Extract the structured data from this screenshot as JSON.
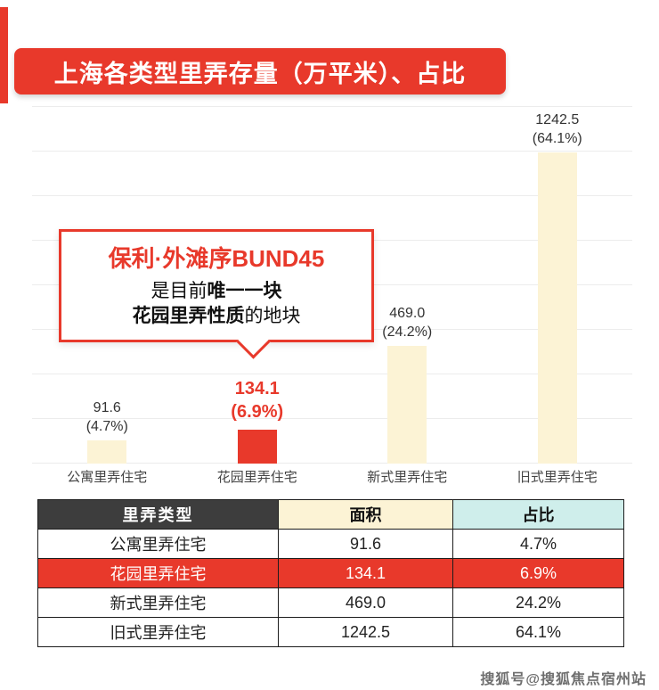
{
  "colors": {
    "accent": "#e8392b",
    "bar_default": "#fcf3d5",
    "table_header_dark": "#3d3d3d",
    "table_header_area": "#fcf3d5",
    "table_header_pct": "#cfeeeb"
  },
  "title": "上海各类型里弄存量（万平米）、占比",
  "callout": {
    "line1": "保利·外滩序BUND45",
    "line2_prefix": "是目前",
    "line2_bold": "唯一一块",
    "line3_bold": "花园里弄性质",
    "line3_suffix": "的地块"
  },
  "bars": [
    {
      "category": "公寓里弄住宅",
      "value_label": "91.6",
      "pct_label": "(4.7%)"
    },
    {
      "category": "花园里弄住宅",
      "value_label": "134.1",
      "pct_label": "(6.9%)"
    },
    {
      "category": "新式里弄住宅",
      "value_label": "469.0",
      "pct_label": "(24.2%)"
    },
    {
      "category": "旧式里弄住宅",
      "value_label": "1242.5",
      "pct_label": "(64.1%)"
    }
  ],
  "table": {
    "headers": [
      "里弄类型",
      "面积",
      "占比"
    ],
    "rows": [
      {
        "type": "公寓里弄住宅",
        "area": "91.6",
        "pct": "4.7%"
      },
      {
        "type": "花园里弄住宅",
        "area": "134.1",
        "pct": "6.9%"
      },
      {
        "type": "新式里弄住宅",
        "area": "469.0",
        "pct": "24.2%"
      },
      {
        "type": "旧式里弄住宅",
        "area": "1242.5",
        "pct": "64.1%"
      }
    ]
  },
  "watermark": "搜狐号@搜狐焦点宿州站",
  "chart_data": {
    "type": "bar",
    "title": "上海各类型里弄存量（万平米）、占比",
    "categories": [
      "公寓里弄住宅",
      "花园里弄住宅",
      "新式里弄住宅",
      "旧式里弄住宅"
    ],
    "series": [
      {
        "name": "存量(万平米)",
        "values": [
          91.6,
          134.1,
          469.0,
          1242.5
        ]
      },
      {
        "name": "占比(%)",
        "values": [
          4.7,
          6.9,
          24.2,
          64.1
        ]
      }
    ],
    "highlight_index": 1,
    "ylim": [
      0,
      1300
    ],
    "grid": true,
    "legend": false,
    "bar_color_default": "#fcf3d5",
    "bar_color_highlight": "#e8392b"
  }
}
